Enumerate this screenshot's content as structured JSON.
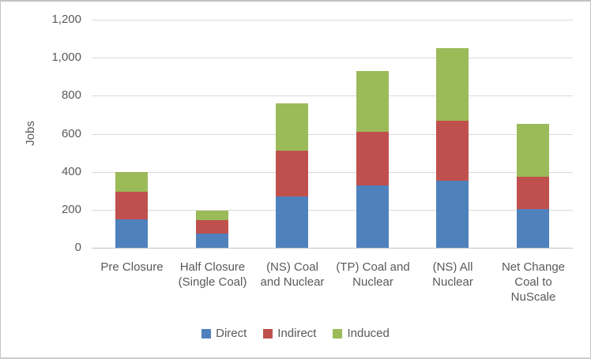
{
  "chart_data": {
    "type": "bar",
    "stacked": true,
    "title": "",
    "ylabel": "Jobs",
    "xlabel": "",
    "ylim": [
      0,
      1200
    ],
    "ytick_step": 200,
    "yticks": [
      {
        "value": 0,
        "label": "0"
      },
      {
        "value": 200,
        "label": "200"
      },
      {
        "value": 400,
        "label": "400"
      },
      {
        "value": 600,
        "label": "600"
      },
      {
        "value": 800,
        "label": "800"
      },
      {
        "value": 1000,
        "label": "1,000"
      },
      {
        "value": 1200,
        "label": "1,200"
      }
    ],
    "grid": true,
    "legend_position": "bottom",
    "categories": [
      {
        "name": "Pre Closure",
        "lines": [
          "Pre Closure"
        ]
      },
      {
        "name": "Half Closure (Single Coal)",
        "lines": [
          "Half Closure",
          "(Single Coal)"
        ]
      },
      {
        "name": "(NS) Coal and Nuclear",
        "lines": [
          "(NS) Coal",
          "and Nuclear"
        ]
      },
      {
        "name": "(TP) Coal and Nuclear",
        "lines": [
          "(TP) Coal and",
          "Nuclear"
        ]
      },
      {
        "name": "(NS) All Nuclear",
        "lines": [
          "(NS) All",
          "Nuclear"
        ]
      },
      {
        "name": "Net Change Coal to NuScale",
        "lines": [
          "Net Change",
          "Coal to",
          "NuScale"
        ]
      }
    ],
    "series": [
      {
        "name": "Direct",
        "color": "#4F81BD",
        "values": [
          150,
          75,
          270,
          330,
          355,
          205
        ]
      },
      {
        "name": "Indirect",
        "color": "#C0504D",
        "values": [
          145,
          70,
          240,
          280,
          315,
          170
        ]
      },
      {
        "name": "Induced",
        "color": "#9BBB59",
        "values": [
          105,
          50,
          250,
          320,
          380,
          275
        ]
      }
    ]
  },
  "colors": {
    "text": "#595959",
    "gridline": "#D9D9D9",
    "axis_line": "#BFBFBF",
    "background": "#FFFFFF",
    "border": "#C6C6C6"
  }
}
